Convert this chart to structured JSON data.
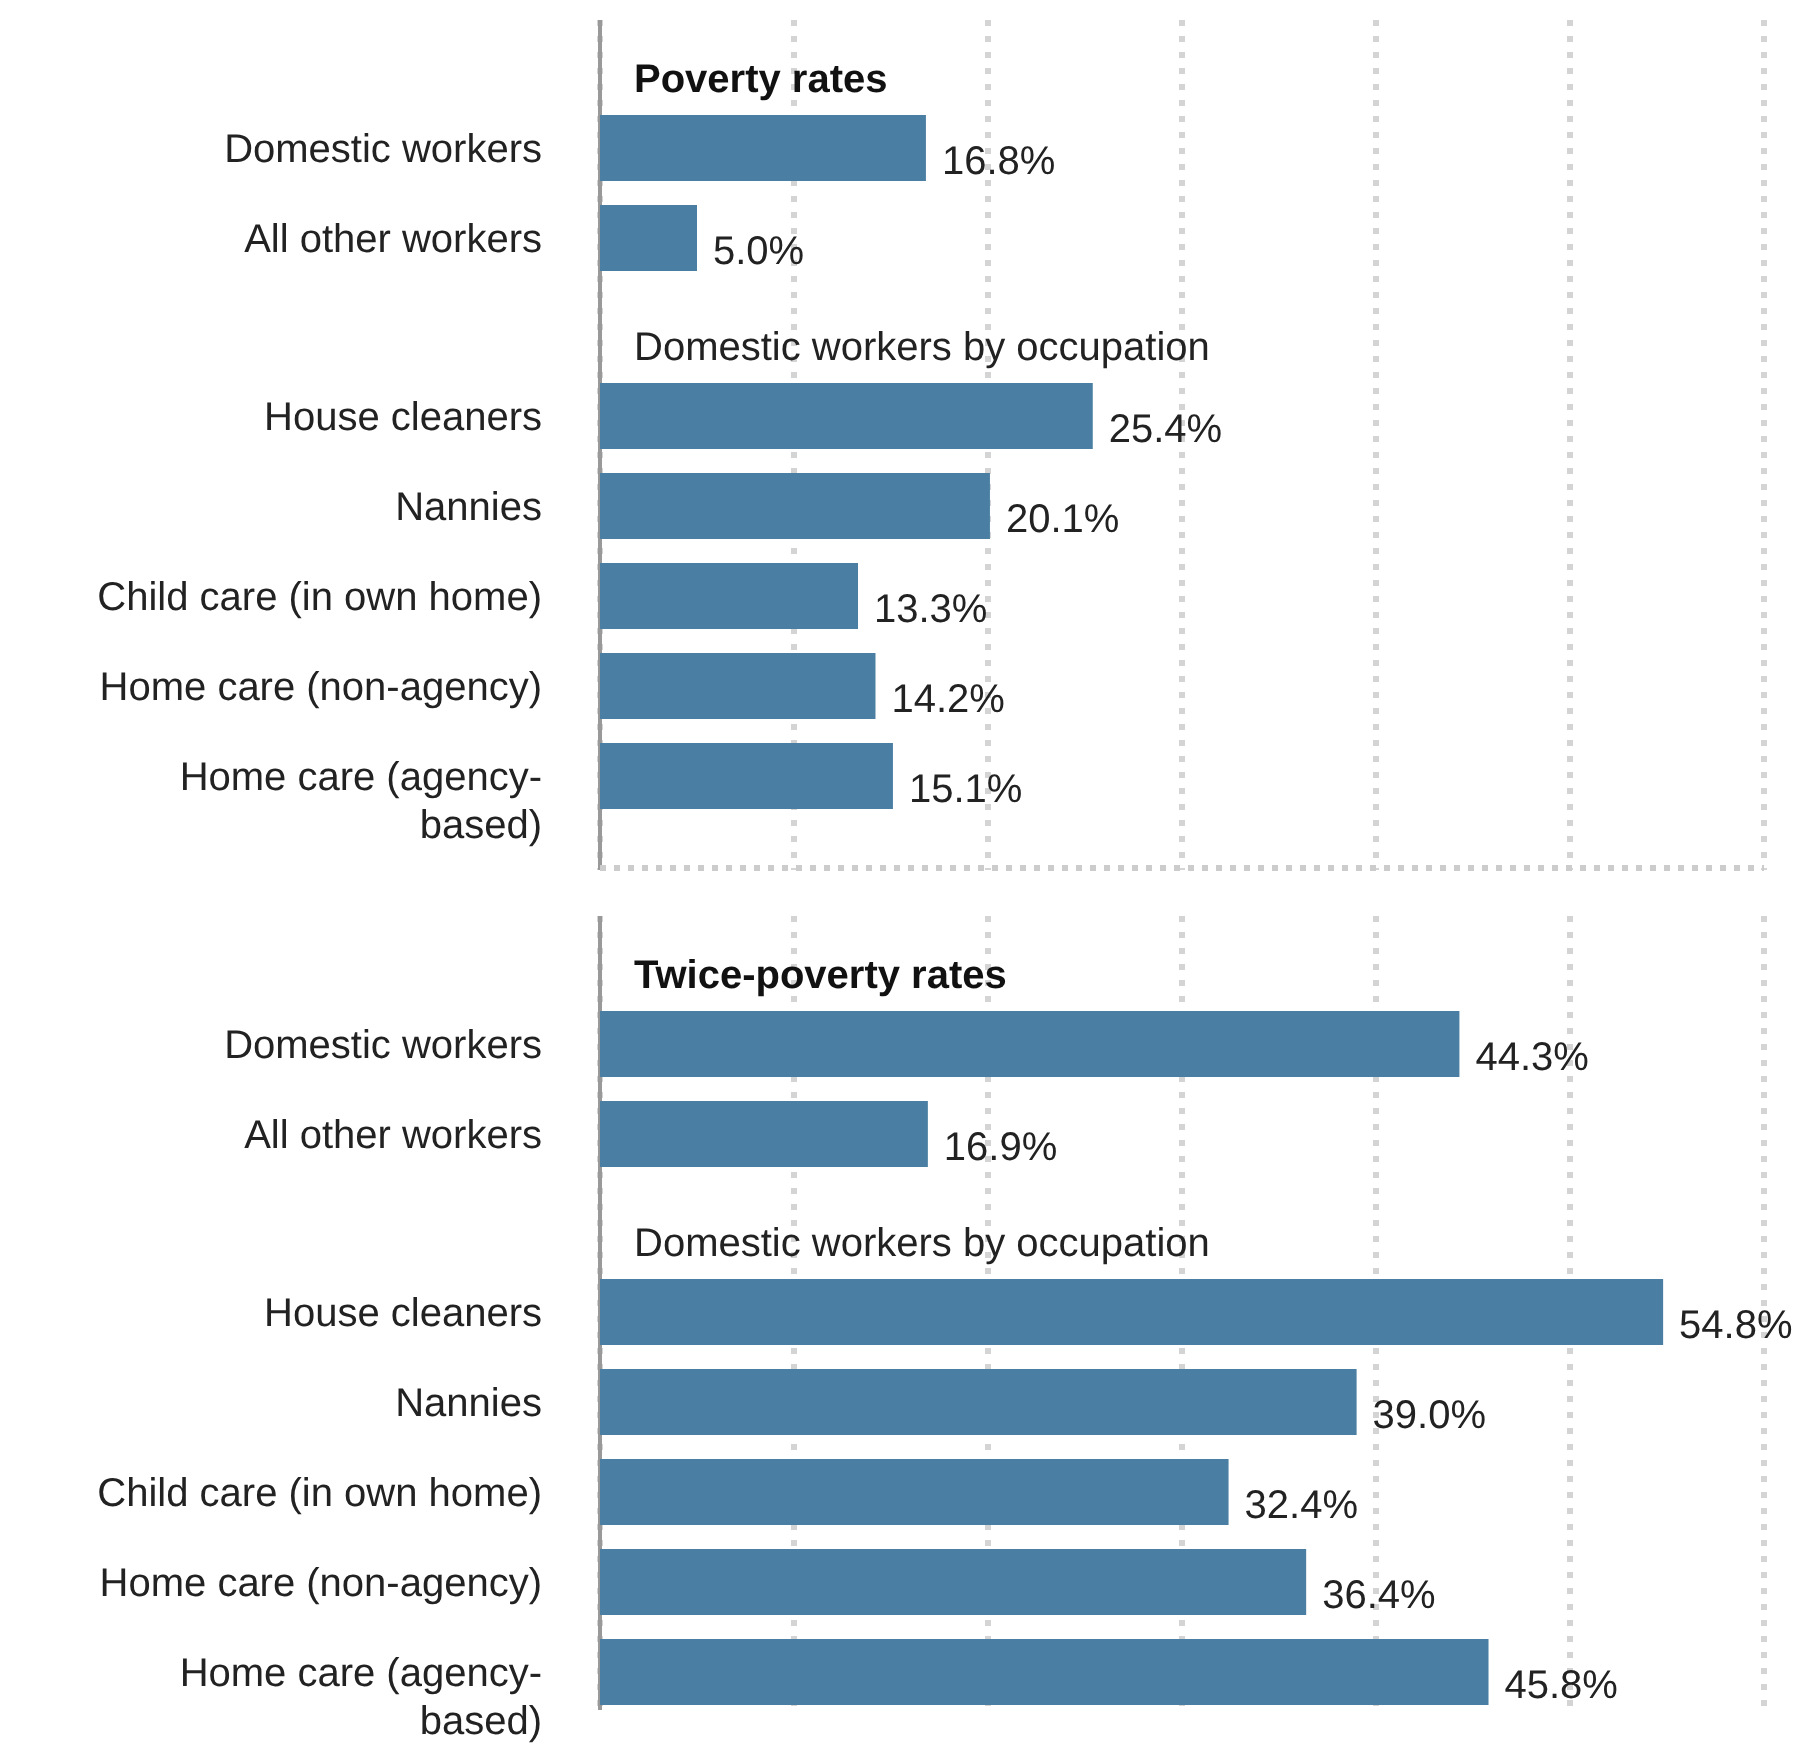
{
  "chart_data": [
    {
      "type": "bar",
      "orientation": "horizontal",
      "title": "Poverty rates",
      "annotations": [
        "Domestic workers by occupation"
      ],
      "categories": [
        "Domestic workers",
        "All other workers",
        "House cleaners",
        "Nannies",
        "Child care (in own home)",
        "Home care (non-agency)",
        "Home care (agency-based)"
      ],
      "values": [
        16.8,
        5.0,
        25.4,
        20.1,
        13.3,
        14.2,
        15.1
      ],
      "value_labels": [
        "16.8%",
        "5.0%",
        "25.4%",
        "20.1%",
        "13.3%",
        "14.2%",
        "15.1%"
      ],
      "color": "#4a7fa3",
      "xlim": [
        0,
        60
      ],
      "xticks": [
        {
          "value": 0,
          "label": null
        },
        {
          "value": 10,
          "label": null
        },
        {
          "value": 20,
          "label": null
        },
        {
          "value": 30,
          "label": null
        },
        {
          "value": 40,
          "label": null
        },
        {
          "value": 50,
          "label": null
        },
        {
          "value": 60,
          "label": null
        }
      ],
      "grid": "x",
      "tick_labels": "y"
    },
    {
      "type": "bar",
      "orientation": "horizontal",
      "title": "Twice-poverty rates",
      "annotations": [
        "Domestic workers by occupation"
      ],
      "categories": [
        "Domestic workers",
        "All other workers",
        "House cleaners",
        "Nannies",
        "Child care (in own home)",
        "Home care (non-agency)",
        "Home care (agency-based)"
      ],
      "values": [
        44.3,
        16.9,
        54.8,
        39.0,
        32.4,
        36.4,
        45.8
      ],
      "value_labels": [
        "44.3%",
        "16.9%",
        "54.8%",
        "39.0%",
        "32.4%",
        "36.4%",
        "45.8%"
      ],
      "color": "#4a7fa3",
      "xlim": [
        0,
        60
      ],
      "xticks": [
        {
          "value": 0,
          "label": null
        },
        {
          "value": 10,
          "label": null
        },
        {
          "value": 20,
          "label": null
        },
        {
          "value": 30,
          "label": null
        },
        {
          "value": 40,
          "label": null
        },
        {
          "value": 50,
          "label": null
        },
        {
          "value": 60,
          "label": null
        }
      ],
      "grid": "x",
      "tick_labels": "y"
    }
  ]
}
